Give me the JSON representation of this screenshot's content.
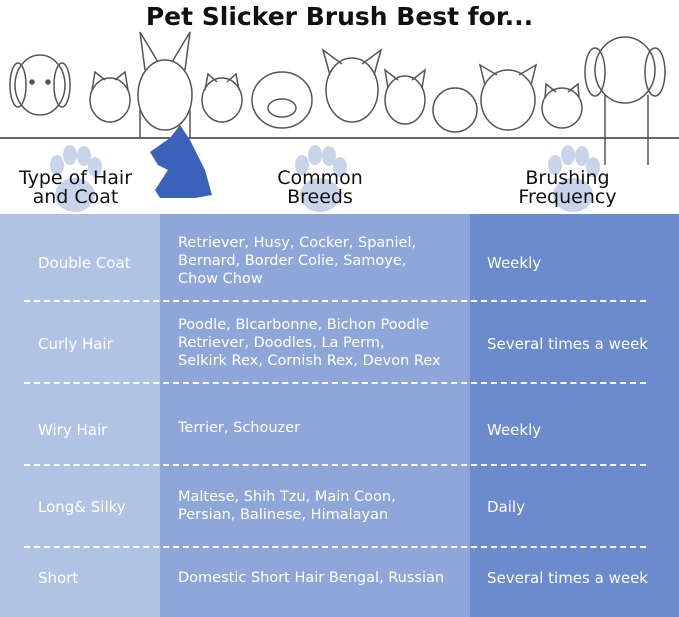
{
  "title": "Pet Slicker Brush Best for...",
  "headers": {
    "type": [
      "Type of Hair",
      "and Coat"
    ],
    "breeds": [
      "Common",
      "Breeds"
    ],
    "frequency": [
      "Brushing",
      "Frequency"
    ]
  },
  "colors": {
    "col1": "#b1c3e4",
    "col2": "#8ea7d8",
    "col3": "#6b8bcc",
    "logo": "#3a62b8",
    "paw": "#c9d4ea"
  },
  "rows": [
    {
      "type": "Double Coat",
      "breeds": [
        "Retriever, Husy, Cocker, Spaniel,",
        "Bernard, Border Colie, Samoye,",
        "Chow Chow"
      ],
      "frequency": "Weekly"
    },
    {
      "type": "Curly Hair",
      "breeds": [
        "Poodle, Blcarbonne, Bichon Poodle",
        "Retriever, Doodles, La Perm,",
        "Selkirk Rex, Cornish Rex, Devon Rex"
      ],
      "frequency": "Several times a week"
    },
    {
      "type": "Wiry Hair",
      "breeds": [
        "Terrier, Schouzer"
      ],
      "frequency": "Weekly"
    },
    {
      "type": "Long& Silky",
      "breeds": [
        "Maltese, Shih Tzu, Main Coon,",
        "Persian, Balinese, Himalayan"
      ],
      "frequency": "Daily"
    },
    {
      "type": "Short",
      "breeds": [
        "Domestic Short Hair Bengal, Russian"
      ],
      "frequency": "Several times a week"
    }
  ]
}
